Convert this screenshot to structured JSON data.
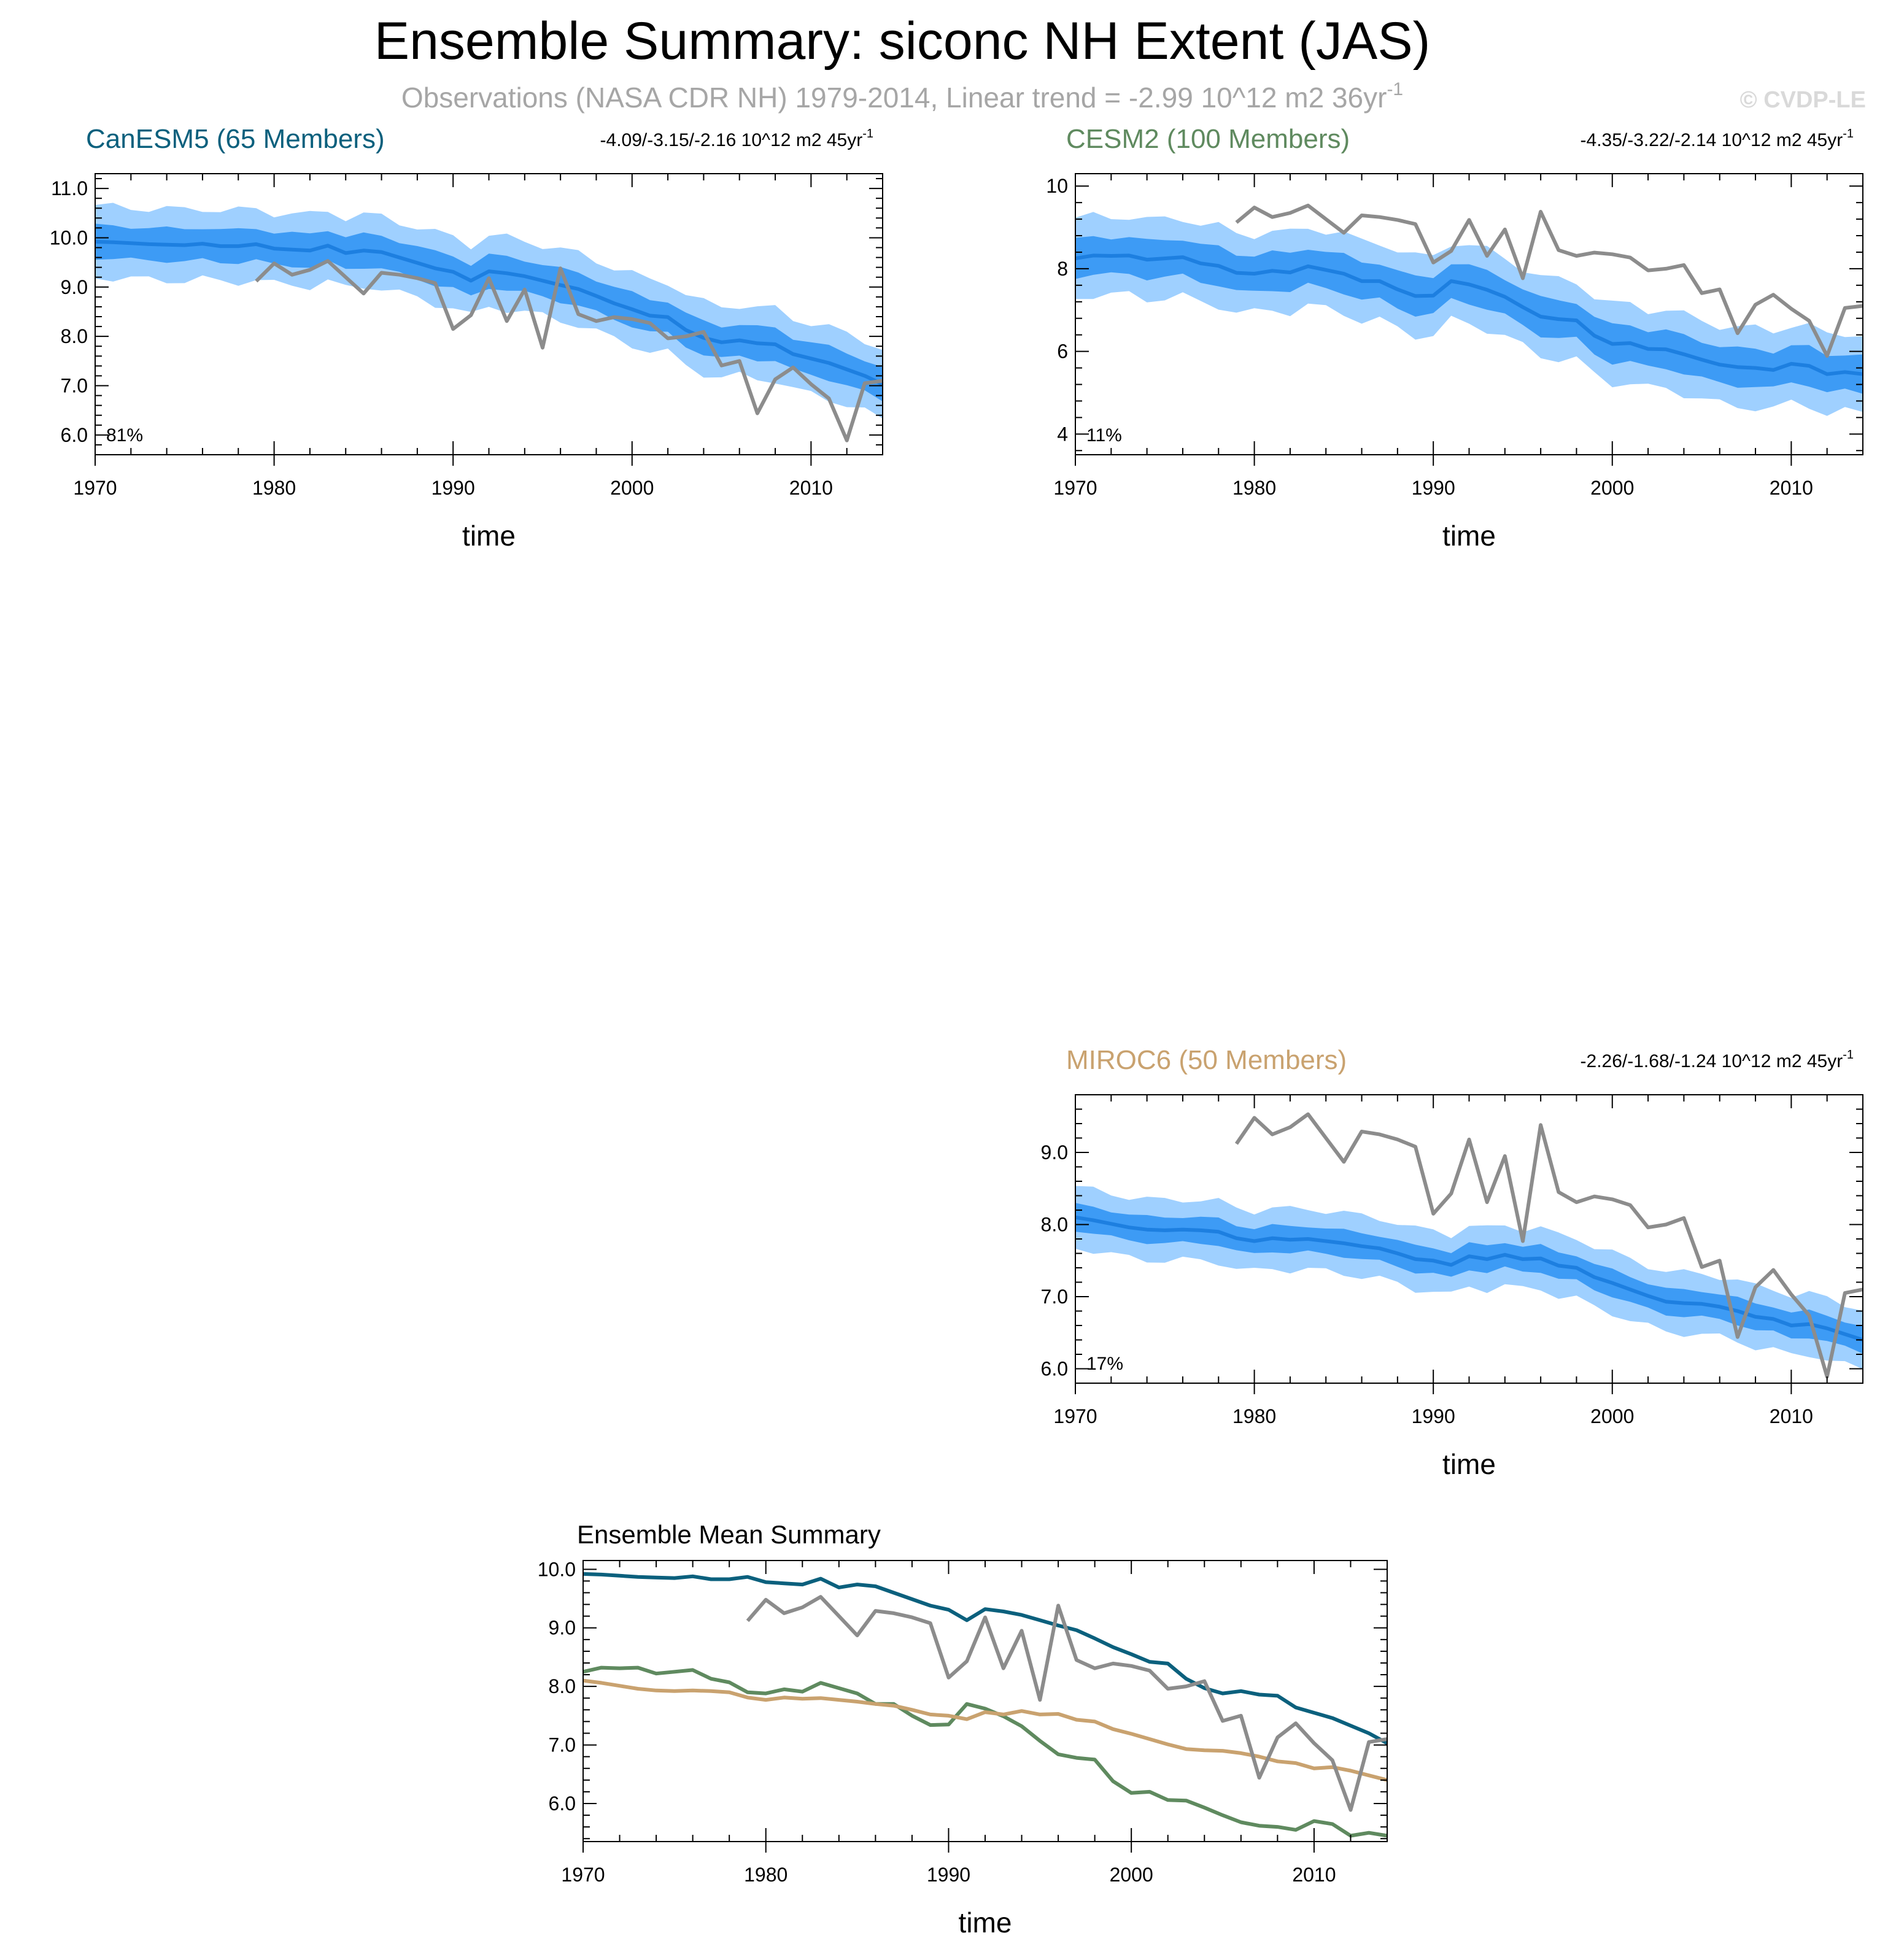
{
  "title": "Ensemble Summary: siconc NH Extent (JAS)",
  "subtitle": "Observations (NASA CDR NH) 1979-2014, Linear trend = -2.99 10^12 m2 36yr",
  "subtitle_sup": "-1",
  "copyright": "© CVDP-LE",
  "xlabel": "time",
  "colors": {
    "obs": "#8c8c8c",
    "band_outer": "#9fd0ff",
    "band_inner": "#3d9bf5",
    "mean_line": "#1d7fe0",
    "canesm5": "#0b607d",
    "cesm2": "#5f8a5f",
    "miroc6": "#c9a26f",
    "subtitle_gray": "#a6a6a6",
    "copyright_gray": "#d9d9d9"
  },
  "obs_years": [
    1979,
    1980,
    1981,
    1982,
    1983,
    1984,
    1985,
    1986,
    1987,
    1988,
    1989,
    1990,
    1991,
    1992,
    1993,
    1994,
    1995,
    1996,
    1997,
    1998,
    1999,
    2000,
    2001,
    2002,
    2003,
    2004,
    2005,
    2006,
    2007,
    2008,
    2009,
    2010,
    2011,
    2012,
    2013,
    2014
  ],
  "obs_values": [
    9.12,
    9.48,
    9.25,
    9.35,
    9.53,
    9.2,
    8.87,
    9.29,
    9.25,
    9.18,
    9.08,
    8.15,
    8.43,
    9.18,
    8.31,
    8.95,
    7.77,
    9.38,
    8.45,
    8.31,
    8.39,
    8.35,
    8.27,
    7.96,
    8.0,
    8.09,
    7.41,
    7.5,
    6.44,
    7.13,
    7.37,
    7.03,
    6.74,
    5.89,
    7.05,
    7.1
  ],
  "chart_data": [
    {
      "type": "line",
      "title": "CanESM5 (65 Members)",
      "title_color": "#0b607d",
      "trend_label": "-4.09/-3.15/-2.16 10^12 m2 45yr",
      "trend_sup": "-1",
      "percent_label": "81%",
      "xlabel": "time",
      "xlim": [
        1970,
        2014
      ],
      "ylim": [
        5.6,
        11.3
      ],
      "yticks": [
        6.0,
        7.0,
        8.0,
        9.0,
        10.0,
        11.0
      ],
      "ytick_labels": [
        "6.0",
        "7.0",
        "8.0",
        "9.0",
        "10.0",
        "11.0"
      ],
      "xticks": [
        1970,
        1980,
        1990,
        2000,
        2010
      ],
      "xtick_labels": [
        "1970",
        "1980",
        "1990",
        "2000",
        "2010"
      ],
      "series": [
        {
          "name": "ensemble mean",
          "values": [
            9.92,
            9.91,
            9.89,
            9.87,
            9.86,
            9.85,
            9.88,
            9.83,
            9.83,
            9.87,
            9.78,
            9.76,
            9.74,
            9.84,
            9.69,
            9.74,
            9.71,
            9.6,
            9.49,
            9.38,
            9.31,
            9.13,
            9.32,
            9.28,
            9.22,
            9.13,
            9.04,
            8.96,
            8.82,
            8.67,
            8.55,
            8.42,
            8.39,
            8.13,
            7.97,
            7.88,
            7.92,
            7.86,
            7.84,
            7.64,
            7.55,
            7.46,
            7.33,
            7.2,
            7.03
          ]
        },
        {
          "name": "observations",
          "values": [
            9.12,
            9.48,
            9.25,
            9.35,
            9.53,
            9.2,
            8.87,
            9.29,
            9.25,
            9.18,
            9.08,
            8.15,
            8.43,
            9.18,
            8.31,
            8.95,
            7.77,
            9.38,
            8.45,
            8.31,
            8.39,
            8.35,
            8.27,
            7.96,
            8.0,
            8.09,
            7.41,
            7.5,
            6.44,
            7.13,
            7.37,
            7.03,
            6.74,
            5.89,
            7.05,
            7.1
          ]
        }
      ],
      "band_inner_halfwidth": 0.33,
      "band_outer_halfwidth": 0.72
    },
    {
      "type": "line",
      "title": "CESM2 (100 Members)",
      "title_color": "#5f8a5f",
      "trend_label": "-4.35/-3.22/-2.14 10^12 m2 45yr",
      "trend_sup": "-1",
      "percent_label": "11%",
      "xlabel": "time",
      "xlim": [
        1970,
        2014
      ],
      "ylim": [
        3.5,
        10.3
      ],
      "yticks": [
        4,
        6,
        8,
        10
      ],
      "ytick_labels": [
        "4",
        "6",
        "8",
        "10"
      ],
      "xticks": [
        1970,
        1980,
        1990,
        2000,
        2010
      ],
      "xtick_labels": [
        "1970",
        "1980",
        "1990",
        "2000",
        "2010"
      ],
      "series": [
        {
          "name": "ensemble mean",
          "values": [
            8.25,
            8.32,
            8.31,
            8.32,
            8.22,
            8.25,
            8.28,
            8.13,
            8.07,
            7.9,
            7.88,
            7.95,
            7.91,
            8.06,
            7.97,
            7.88,
            7.7,
            7.7,
            7.5,
            7.34,
            7.35,
            7.7,
            7.62,
            7.49,
            7.32,
            7.07,
            6.84,
            6.78,
            6.75,
            6.38,
            6.18,
            6.2,
            6.06,
            6.05,
            5.93,
            5.8,
            5.68,
            5.62,
            5.6,
            5.55,
            5.7,
            5.65,
            5.45,
            5.5,
            5.45
          ]
        },
        {
          "name": "observations",
          "values": [
            9.12,
            9.48,
            9.25,
            9.35,
            9.53,
            9.2,
            8.87,
            9.29,
            9.25,
            9.18,
            9.08,
            8.15,
            8.43,
            9.18,
            8.31,
            8.95,
            7.77,
            9.38,
            8.45,
            8.31,
            8.39,
            8.35,
            8.27,
            7.96,
            8.0,
            8.09,
            7.41,
            7.5,
            6.44,
            7.13,
            7.37,
            7.03,
            6.74,
            5.89,
            7.05,
            7.1
          ]
        }
      ],
      "band_inner_halfwidth": 0.45,
      "band_outer_halfwidth": 0.95
    },
    {
      "type": "line",
      "title": "MIROC6 (50 Members)",
      "title_color": "#c9a26f",
      "trend_label": "-2.26/-1.68/-1.24 10^12 m2 45yr",
      "trend_sup": "-1",
      "percent_label": "17%",
      "xlabel": "time",
      "xlim": [
        1970,
        2014
      ],
      "ylim": [
        5.8,
        9.8
      ],
      "yticks": [
        6.0,
        7.0,
        8.0,
        9.0
      ],
      "ytick_labels": [
        "6.0",
        "7.0",
        "8.0",
        "9.0"
      ],
      "xticks": [
        1970,
        1980,
        1990,
        2000,
        2010
      ],
      "xtick_labels": [
        "1970",
        "1980",
        "1990",
        "2000",
        "2010"
      ],
      "series": [
        {
          "name": "ensemble mean",
          "values": [
            8.1,
            8.06,
            8.01,
            7.96,
            7.93,
            7.92,
            7.93,
            7.92,
            7.9,
            7.81,
            7.77,
            7.81,
            7.79,
            7.8,
            7.77,
            7.74,
            7.7,
            7.67,
            7.6,
            7.52,
            7.5,
            7.44,
            7.56,
            7.52,
            7.58,
            7.52,
            7.53,
            7.43,
            7.4,
            7.27,
            7.19,
            7.1,
            7.01,
            6.93,
            6.91,
            6.9,
            6.86,
            6.8,
            6.72,
            6.69,
            6.6,
            6.62,
            6.56,
            6.48,
            6.4
          ]
        },
        {
          "name": "observations",
          "values": [
            9.12,
            9.48,
            9.25,
            9.35,
            9.53,
            9.2,
            8.87,
            9.29,
            9.25,
            9.18,
            9.08,
            8.15,
            8.43,
            9.18,
            8.31,
            8.95,
            7.77,
            9.38,
            8.45,
            8.31,
            8.39,
            8.35,
            8.27,
            7.96,
            8.0,
            8.09,
            7.41,
            7.5,
            6.44,
            7.13,
            7.37,
            7.03,
            6.74,
            5.89,
            7.05,
            7.1
          ]
        }
      ],
      "band_inner_halfwidth": 0.18,
      "band_outer_halfwidth": 0.42
    },
    {
      "type": "line",
      "title": "Ensemble Mean Summary",
      "title_color": "#000000",
      "xlabel": "time",
      "xlim": [
        1970,
        2014
      ],
      "ylim": [
        5.35,
        10.15
      ],
      "yticks": [
        6.0,
        7.0,
        8.0,
        9.0,
        10.0
      ],
      "ytick_labels": [
        "6.0",
        "7.0",
        "8.0",
        "9.0",
        "10.0"
      ],
      "xticks": [
        1970,
        1980,
        1990,
        2000,
        2010
      ],
      "xtick_labels": [
        "1970",
        "1980",
        "1990",
        "2000",
        "2010"
      ],
      "series": [
        {
          "name": "CanESM5",
          "color": "#0b607d",
          "values": [
            9.92,
            9.91,
            9.89,
            9.87,
            9.86,
            9.85,
            9.88,
            9.83,
            9.83,
            9.87,
            9.78,
            9.76,
            9.74,
            9.84,
            9.69,
            9.74,
            9.71,
            9.6,
            9.49,
            9.38,
            9.31,
            9.13,
            9.32,
            9.28,
            9.22,
            9.13,
            9.04,
            8.96,
            8.82,
            8.67,
            8.55,
            8.42,
            8.39,
            8.13,
            7.97,
            7.88,
            7.92,
            7.86,
            7.84,
            7.64,
            7.55,
            7.46,
            7.33,
            7.2,
            7.03
          ]
        },
        {
          "name": "CESM2",
          "color": "#5f8a5f",
          "values": [
            8.25,
            8.32,
            8.31,
            8.32,
            8.22,
            8.25,
            8.28,
            8.13,
            8.07,
            7.9,
            7.88,
            7.95,
            7.91,
            8.06,
            7.97,
            7.88,
            7.7,
            7.7,
            7.5,
            7.34,
            7.35,
            7.7,
            7.62,
            7.49,
            7.32,
            7.07,
            6.84,
            6.78,
            6.75,
            6.38,
            6.18,
            6.2,
            6.06,
            6.05,
            5.93,
            5.8,
            5.68,
            5.62,
            5.6,
            5.55,
            5.7,
            5.65,
            5.45,
            5.5,
            5.45
          ]
        },
        {
          "name": "MIROC6",
          "color": "#c9a26f",
          "values": [
            8.1,
            8.06,
            8.01,
            7.96,
            7.93,
            7.92,
            7.93,
            7.92,
            7.9,
            7.81,
            7.77,
            7.81,
            7.79,
            7.8,
            7.77,
            7.74,
            7.7,
            7.67,
            7.6,
            7.52,
            7.5,
            7.44,
            7.56,
            7.52,
            7.58,
            7.52,
            7.53,
            7.43,
            7.4,
            7.27,
            7.19,
            7.1,
            7.01,
            6.93,
            6.91,
            6.9,
            6.86,
            6.8,
            6.72,
            6.69,
            6.6,
            6.62,
            6.56,
            6.48,
            6.4
          ]
        },
        {
          "name": "Observations",
          "color": "#8c8c8c",
          "values": [
            9.12,
            9.48,
            9.25,
            9.35,
            9.53,
            9.2,
            8.87,
            9.29,
            9.25,
            9.18,
            9.08,
            8.15,
            8.43,
            9.18,
            8.31,
            8.95,
            7.77,
            9.38,
            8.45,
            8.31,
            8.39,
            8.35,
            8.27,
            7.96,
            8.0,
            8.09,
            7.41,
            7.5,
            6.44,
            7.13,
            7.37,
            7.03,
            6.74,
            5.89,
            7.05,
            7.1
          ]
        }
      ]
    }
  ]
}
